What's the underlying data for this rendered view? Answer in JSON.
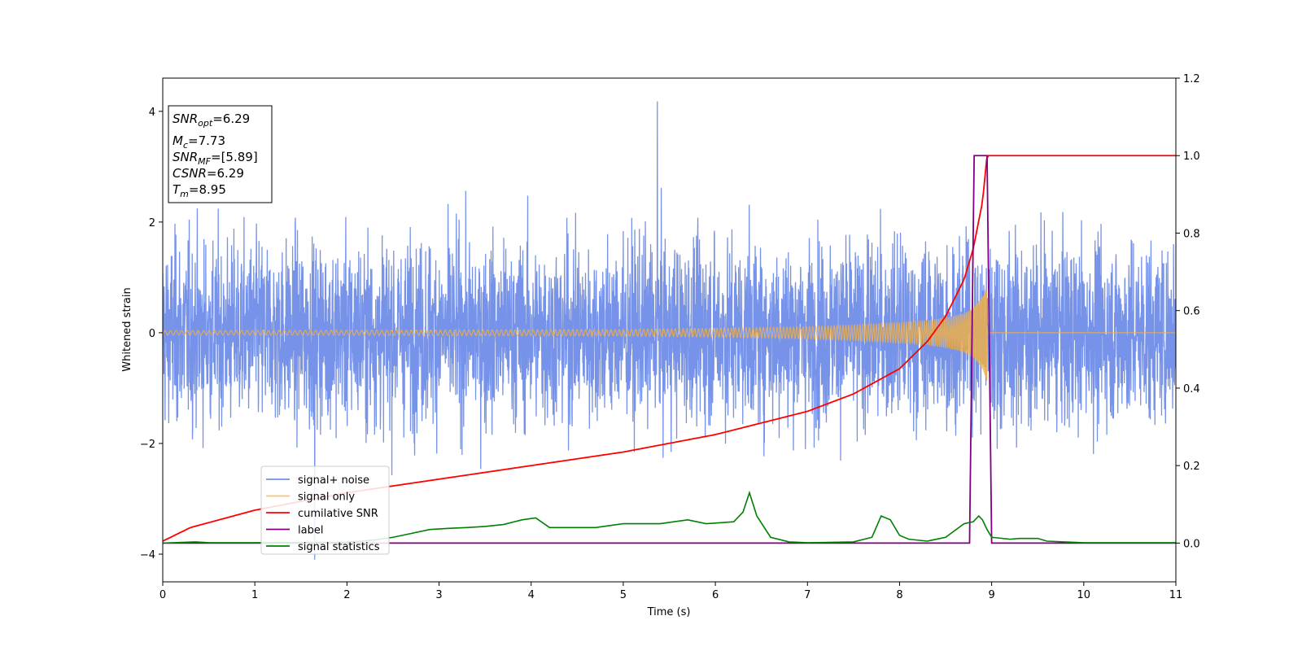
{
  "chart_data": {
    "type": "line",
    "xlabel": "Time (s)",
    "ylabel": "Whitened strain",
    "xlim": [
      0,
      11
    ],
    "ylim_left": [
      -4.5,
      4.6
    ],
    "ylim_right": [
      -0.1,
      1.2
    ],
    "x_ticks": [
      "0",
      "1",
      "2",
      "3",
      "4",
      "5",
      "6",
      "7",
      "8",
      "9",
      "10",
      "11"
    ],
    "y_ticks_left": [
      "−4",
      "−2",
      "0",
      "2",
      "4"
    ],
    "y_ticks_right": [
      "0.0",
      "0.2",
      "0.4",
      "0.6",
      "0.8",
      "1.0",
      "1.2"
    ],
    "y_tick_values_left": [
      -4,
      -2,
      0,
      2,
      4
    ],
    "y_tick_values_right": [
      0.0,
      0.2,
      0.4,
      0.6,
      0.8,
      1.0,
      1.2
    ],
    "x_tick_values": [
      0,
      1,
      2,
      3,
      4,
      5,
      6,
      7,
      8,
      9,
      10,
      11
    ],
    "legend_position": "lower-left",
    "series": [
      {
        "name": "signal+ noise",
        "axis": "left",
        "color": "#4169e1",
        "description_values": {
          "typical_range": [
            -2.0,
            2.0
          ],
          "max": 4.18,
          "max_at": 5.37,
          "min": -4.1,
          "min_at": 1.65
        }
      },
      {
        "name": "signal only",
        "axis": "left",
        "color": "#f5b041",
        "envelope": {
          "x": [
            0,
            3,
            5,
            6,
            7,
            7.5,
            8,
            8.3,
            8.5,
            8.7,
            8.8,
            8.9,
            8.95
          ],
          "amp": [
            0.04,
            0.05,
            0.06,
            0.08,
            0.11,
            0.14,
            0.18,
            0.22,
            0.27,
            0.35,
            0.45,
            0.65,
            0.9
          ],
          "end": 8.95
        }
      },
      {
        "name": "cumilative SNR",
        "axis": "right",
        "color": "#ff0000",
        "x": [
          0,
          0.3,
          1,
          2,
          3,
          4,
          5,
          6,
          6.5,
          7,
          7.5,
          8,
          8.3,
          8.5,
          8.7,
          8.8,
          8.9,
          8.95,
          11
        ],
        "y": [
          0.005,
          0.04,
          0.085,
          0.13,
          0.165,
          0.2,
          0.235,
          0.28,
          0.31,
          0.34,
          0.385,
          0.45,
          0.52,
          0.585,
          0.68,
          0.76,
          0.88,
          1.0,
          1.0
        ]
      },
      {
        "name": "label",
        "axis": "right",
        "color": "#800080",
        "x": [
          0,
          8.76,
          8.81,
          8.95,
          9.0,
          11
        ],
        "y": [
          0,
          0,
          1,
          1,
          0,
          0
        ]
      },
      {
        "name": "signal statistics",
        "axis": "right",
        "color": "#008000",
        "x": [
          0,
          0.35,
          0.5,
          1,
          2,
          2.3,
          2.5,
          2.7,
          2.9,
          3.1,
          3.3,
          3.5,
          3.7,
          3.9,
          4.05,
          4.2,
          4.5,
          4.7,
          5,
          5.2,
          5.4,
          5.7,
          5.9,
          6.2,
          6.3,
          6.37,
          6.45,
          6.6,
          6.8,
          7.0,
          7.5,
          7.7,
          7.8,
          7.9,
          8.0,
          8.1,
          8.3,
          8.5,
          8.7,
          8.8,
          8.86,
          8.9,
          8.95,
          9.0,
          9.2,
          9.3,
          9.5,
          9.6,
          10,
          11
        ],
        "y": [
          0,
          0.003,
          0.001,
          0.001,
          0.002,
          0.008,
          0.015,
          0.025,
          0.035,
          0.038,
          0.04,
          0.043,
          0.048,
          0.06,
          0.065,
          0.04,
          0.04,
          0.04,
          0.05,
          0.05,
          0.05,
          0.06,
          0.05,
          0.055,
          0.08,
          0.13,
          0.07,
          0.015,
          0.003,
          0.001,
          0.003,
          0.015,
          0.07,
          0.06,
          0.02,
          0.01,
          0.005,
          0.015,
          0.05,
          0.055,
          0.07,
          0.06,
          0.035,
          0.015,
          0.01,
          0.012,
          0.012,
          0.005,
          0.001,
          0.001
        ]
      }
    ]
  },
  "annotation_box": {
    "line1_main": "SNR",
    "line1_sub": "opt",
    "line1_value": "=6.29",
    "line2_main": "M",
    "line2_sub": "c",
    "line2_value": "=7.73",
    "line3_main": "SNR",
    "line3_sub": "MF",
    "line3_value": "=[5.89]",
    "line4_main": "CSNR",
    "line4_value": "=6.29",
    "line5_main": "T",
    "line5_sub": "m",
    "line5_value": "=8.95"
  }
}
